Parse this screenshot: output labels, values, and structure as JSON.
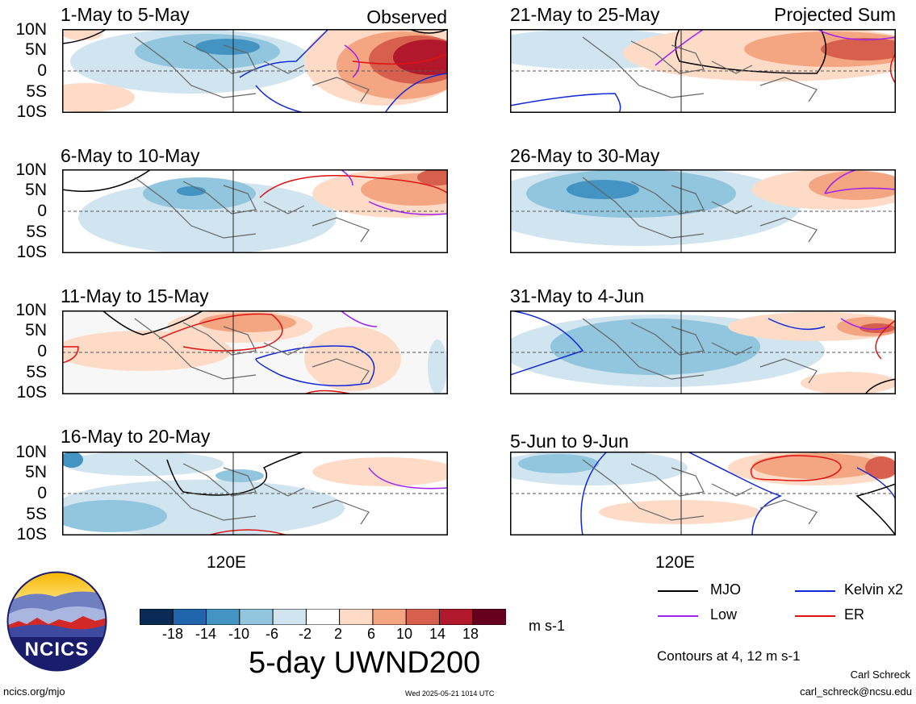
{
  "panels": [
    {
      "title": "1-May to 5-May",
      "tag": "Observed"
    },
    {
      "title": "6-May to 10-May",
      "tag": ""
    },
    {
      "title": "11-May to 15-May",
      "tag": ""
    },
    {
      "title": "16-May to 20-May",
      "tag": ""
    },
    {
      "title": "21-May to 25-May",
      "tag": "Projected Sum"
    },
    {
      "title": "26-May to 30-May",
      "tag": ""
    },
    {
      "title": "31-May to 4-Jun",
      "tag": ""
    },
    {
      "title": "5-Jun to 9-Jun",
      "tag": ""
    }
  ],
  "lat_labels": [
    "10N",
    "5N",
    "0",
    "5S",
    "10S"
  ],
  "lon_label": "120E",
  "logo": {
    "text": "NCICS"
  },
  "colorbar": {
    "labels": [
      "-18",
      "-14",
      "-10",
      "-6",
      "-2",
      "2",
      "6",
      "10",
      "14",
      "18"
    ],
    "colors": [
      "#0b2a55",
      "#2166ac",
      "#4393c3",
      "#92c5de",
      "#d1e5f0",
      "#ffffff",
      "#fddbc7",
      "#f4a582",
      "#d6604d",
      "#b2182b",
      "#67001f"
    ],
    "units": "m s-1",
    "title": "5-day UWND200"
  },
  "legend": [
    {
      "label": "MJO",
      "color": "#000000"
    },
    {
      "label": "Kelvin x2",
      "color": "#1028d8"
    },
    {
      "label": "Low",
      "color": "#a020f0"
    },
    {
      "label": "ER",
      "color": "#e01010"
    }
  ],
  "contours_note": "Contours at 4, 12 m s-1",
  "author": "Carl Schreck",
  "email": "carl_schreck@ncsu.edu",
  "url": "ncics.org/mjo",
  "timestamp": "Wed 2025-05-21 1014 UTC"
}
